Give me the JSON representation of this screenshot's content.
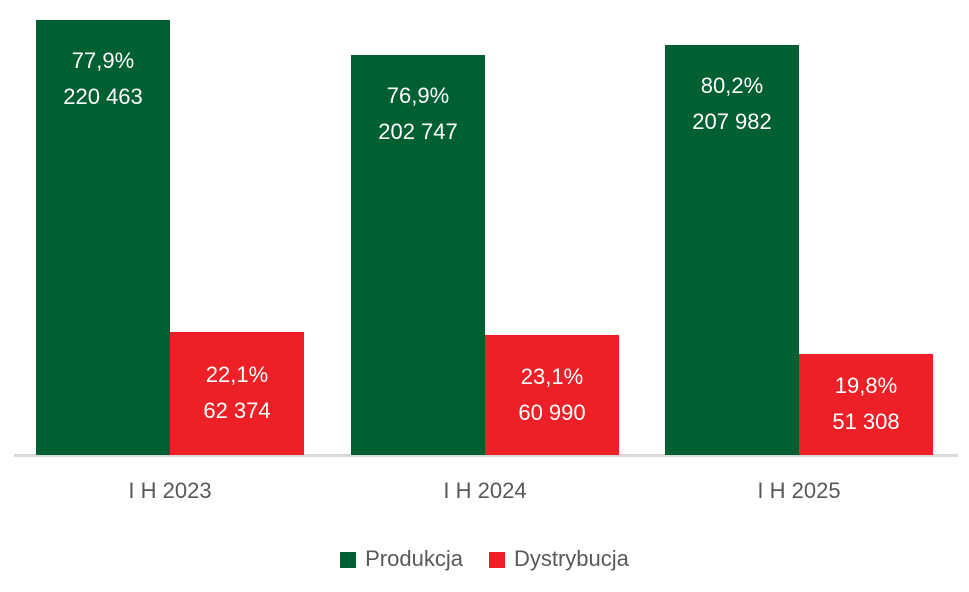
{
  "chart_data": {
    "type": "bar",
    "categories": [
      "I H 2023",
      "I H 2024",
      "I H 2025"
    ],
    "series": [
      {
        "name": "Produkcja",
        "color": "#006032",
        "values": [
          220463,
          202747,
          207982
        ],
        "share_pct": [
          77.9,
          76.9,
          80.2
        ],
        "pct_labels": [
          "77,9%",
          "76,9%",
          "80,2%"
        ],
        "value_labels": [
          "220 463",
          "202 747",
          "207 982"
        ]
      },
      {
        "name": "Dystrybucja",
        "color": "#EC2026",
        "values": [
          62374,
          60990,
          51308
        ],
        "share_pct": [
          22.1,
          23.1,
          19.8
        ],
        "pct_labels": [
          "22,1%",
          "23,1%",
          "19,8%"
        ],
        "value_labels": [
          "62 374",
          "60 990",
          "51 308"
        ]
      }
    ],
    "title": "",
    "xlabel": "",
    "ylabel": "",
    "ylim": [
      0,
      230000
    ],
    "grid": false,
    "legend_position": "bottom",
    "bar_label_position": {
      "Produkcja": "inside-top",
      "Dystrybucja": "inside-center"
    },
    "colors": {
      "background": "#FFFFFF",
      "axis_line": "#D9D9D9",
      "axis_label_text": "#595959",
      "legend_text": "#595959",
      "bar_label_text": "#FFFFFF"
    }
  }
}
